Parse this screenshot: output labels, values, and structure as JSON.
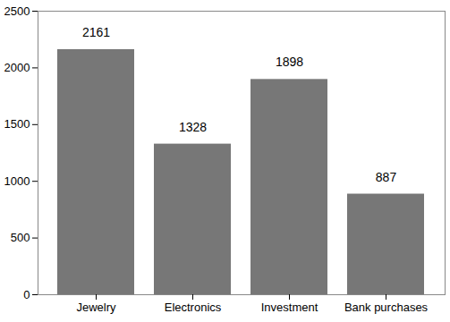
{
  "chart_data": {
    "type": "bar",
    "categories": [
      "Jewelry",
      "Electronics",
      "Investment",
      "Bank purchases"
    ],
    "values": [
      2161,
      1328,
      1898,
      887
    ],
    "color": "#777777",
    "ylim": [
      0,
      2500
    ],
    "yticks": [
      0,
      500,
      1000,
      1500,
      2000,
      2500
    ],
    "grid": false,
    "data_labels": true
  }
}
